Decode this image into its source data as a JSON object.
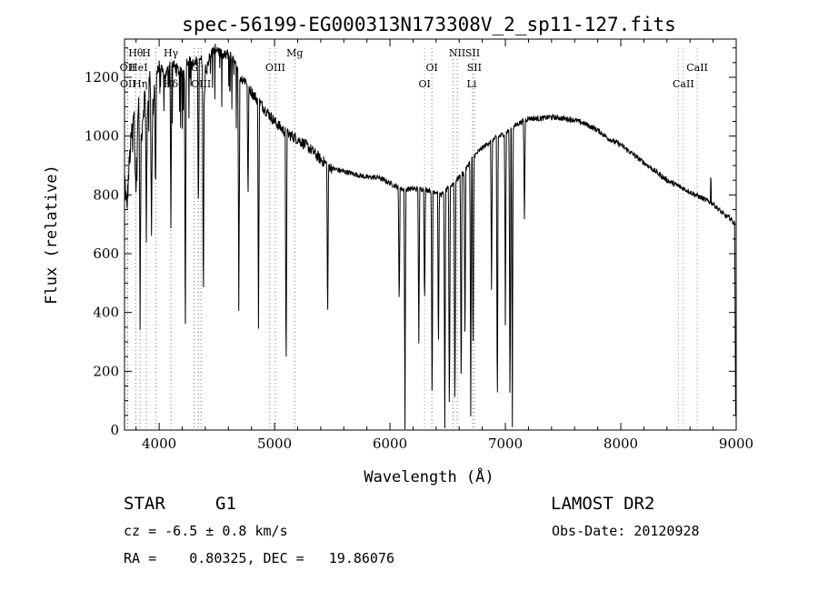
{
  "chart_data": {
    "type": "line",
    "title": "spec-56199-EG000313N173308V_2_sp11-127.fits",
    "xlabel": "Wavelength (Å)",
    "ylabel": "Flux (relative)",
    "xlim": [
      3700,
      9000
    ],
    "ylim": [
      0,
      1330
    ],
    "x_ticks": [
      4000,
      5000,
      6000,
      7000,
      8000,
      9000
    ],
    "y_ticks": [
      0,
      200,
      400,
      600,
      800,
      1000,
      1200
    ],
    "x_tick_labels": [
      "4000",
      "5000",
      "6000",
      "7000",
      "8000",
      "9000"
    ],
    "y_tick_labels": [
      "0",
      "200",
      "400",
      "600",
      "800",
      "1000",
      "1200"
    ],
    "grid": false,
    "line_color": "#000000",
    "marker_colors": {
      "top_group": "#555555",
      "bottom_group": "#c06060"
    },
    "series": [
      {
        "x": [
          3700,
          3720,
          3740,
          3760,
          3780,
          3800,
          3820,
          3840,
          3860,
          3880,
          3900,
          3920,
          3940,
          3960,
          3980,
          4000,
          4050,
          4100,
          4150,
          4200,
          4250,
          4300,
          4350,
          4400,
          4450,
          4500,
          4550,
          4600,
          4650,
          4700,
          4750,
          4800,
          4900,
          5000,
          5100,
          5200,
          5300,
          5400,
          5500,
          5600,
          5700,
          5800,
          5900,
          6000,
          6100,
          6200,
          6300,
          6400,
          6450,
          6500,
          6550,
          6600,
          6650,
          6700,
          6750,
          6800,
          6900,
          7000,
          7100,
          7200,
          7300,
          7400,
          7500,
          7600,
          7700,
          7800,
          7900,
          8000,
          8100,
          8200,
          8300,
          8400,
          8500,
          8600,
          8700,
          8800,
          8850,
          8900,
          8950,
          8990
        ],
        "y": [
          860,
          750,
          900,
          1000,
          1100,
          820,
          1120,
          960,
          1080,
          1150,
          1080,
          1200,
          1050,
          1180,
          1220,
          1240,
          1200,
          1250,
          1230,
          1210,
          1260,
          1240,
          1270,
          1230,
          1280,
          1300,
          1270,
          1280,
          1250,
          1200,
          1190,
          1150,
          1100,
          1050,
          1010,
          990,
          960,
          920,
          890,
          880,
          870,
          860,
          860,
          840,
          820,
          820,
          820,
          810,
          800,
          820,
          840,
          860,
          880,
          920,
          940,
          960,
          990,
          1010,
          1040,
          1060,
          1060,
          1065,
          1060,
          1055,
          1040,
          1020,
          990,
          970,
          940,
          910,
          880,
          850,
          830,
          810,
          790,
          770,
          750,
          730,
          720,
          700
        ],
        "absorption_lines": [
          {
            "x": 3835,
            "depth": 640
          },
          {
            "x": 3889,
            "depth": 480
          },
          {
            "x": 3934,
            "depth": 400
          },
          {
            "x": 3969,
            "depth": 420
          },
          {
            "x": 4102,
            "depth": 560
          },
          {
            "x": 4227,
            "depth": 860
          },
          {
            "x": 4340,
            "depth": 560
          },
          {
            "x": 4383,
            "depth": 880
          },
          {
            "x": 4690,
            "depth": 690
          },
          {
            "x": 4770,
            "depth": 400
          },
          {
            "x": 4861,
            "depth": 760
          },
          {
            "x": 5100,
            "depth": 860
          },
          {
            "x": 5460,
            "depth": 560
          },
          {
            "x": 6080,
            "depth": 420
          },
          {
            "x": 6130,
            "depth": 810
          },
          {
            "x": 6250,
            "depth": 520
          },
          {
            "x": 6300,
            "depth": 420
          },
          {
            "x": 6365,
            "depth": 780
          },
          {
            "x": 6420,
            "depth": 560
          },
          {
            "x": 6475,
            "depth": 810
          },
          {
            "x": 6515,
            "depth": 830
          },
          {
            "x": 6563,
            "depth": 835
          },
          {
            "x": 6617,
            "depth": 780
          },
          {
            "x": 6650,
            "depth": 620
          },
          {
            "x": 6700,
            "depth": 880
          },
          {
            "x": 6720,
            "depth": 720
          },
          {
            "x": 6880,
            "depth": 500
          },
          {
            "x": 6930,
            "depth": 990
          },
          {
            "x": 7000,
            "depth": 650
          },
          {
            "x": 7040,
            "depth": 1020
          },
          {
            "x": 7060,
            "depth": 1020
          },
          {
            "x": 7165,
            "depth": 340
          },
          {
            "x": 8995,
            "depth": 650
          }
        ],
        "emission_spikes": [
          {
            "x": 8780,
            "height": 80
          }
        ]
      }
    ],
    "top_markers": [
      {
        "x": 3797,
        "label": "Hθ",
        "row": 0
      },
      {
        "x": 3889,
        "label": "H",
        "row": 0
      },
      {
        "x": 4102,
        "label": "Hγ",
        "row": 0
      },
      {
        "x": 5175,
        "label": "Mg",
        "row": 0
      },
      {
        "x": 6583,
        "label": "NII",
        "row": 0
      },
      {
        "x": 6716,
        "label": "SII",
        "row": 0
      },
      {
        "x": 3727,
        "label": "OII",
        "row": 1
      },
      {
        "x": 3820,
        "label": "HeI",
        "row": 1
      },
      {
        "x": 4304,
        "label": "G",
        "row": 1
      },
      {
        "x": 5007,
        "label": "OIII",
        "row": 1
      },
      {
        "x": 6363,
        "label": "OI",
        "row": 1
      },
      {
        "x": 6731,
        "label": "SII",
        "row": 1
      },
      {
        "x": 8662,
        "label": "CaII",
        "row": 1
      },
      {
        "x": 3730,
        "label": "OII",
        "row": 2
      },
      {
        "x": 3835,
        "label": "Hη",
        "row": 2
      },
      {
        "x": 4102,
        "label": "Hδ",
        "row": 2
      },
      {
        "x": 4363,
        "label": "OIII",
        "row": 2
      },
      {
        "x": 6300,
        "label": "OI",
        "row": 2
      },
      {
        "x": 6708,
        "label": "Li",
        "row": 2
      },
      {
        "x": 8542,
        "label": "CaII",
        "row": 2
      }
    ],
    "marker_lines": {
      "top": [
        3727,
        3797,
        3835,
        3889,
        3970,
        4102,
        4304,
        4340,
        4363,
        4959,
        5007,
        5175,
        6363,
        6548,
        6583,
        6716,
        6731
      ],
      "bottom": [
        6300,
        8498,
        8542,
        8662
      ]
    }
  },
  "info": {
    "object_class": "STAR",
    "subclass": "G1",
    "survey": "LAMOST DR2",
    "redshift": "cz = -6.5 ± 0.8 km/s",
    "obs_date": "Obs-Date: 20120928",
    "coords": "RA =    0.80325, DEC =   19.86076"
  }
}
